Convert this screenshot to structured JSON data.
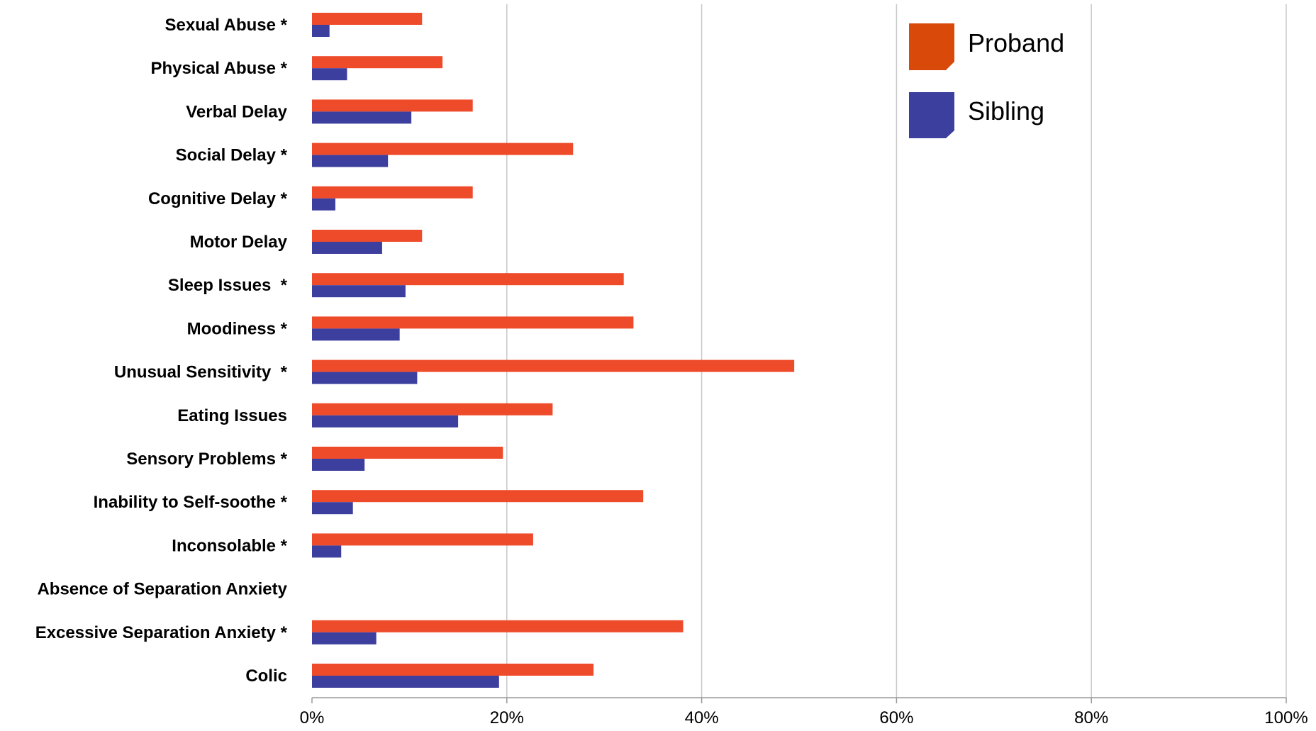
{
  "chart_data": {
    "type": "bar",
    "orientation": "horizontal",
    "categories": [
      "Sexual Abuse *",
      "Physical Abuse *",
      "Verbal Delay",
      "Social Delay *",
      "Cognitive Delay *",
      "Motor Delay",
      "Sleep Issues  *",
      "Moodiness *",
      "Unusual Sensitivity  *",
      "Eating Issues",
      "Sensory Problems *",
      "Inability to Self-soothe *",
      "Inconsolable *",
      "Absence of Separation Anxiety",
      "Excessive Separation Anxiety *",
      "Colic"
    ],
    "series": [
      {
        "name": "Proband",
        "color": "#ee4b2b",
        "values": [
          11.3,
          13.4,
          16.5,
          26.8,
          16.5,
          11.3,
          32.0,
          33.0,
          49.5,
          24.7,
          19.6,
          34.0,
          22.7,
          0,
          38.1,
          28.9
        ]
      },
      {
        "name": "Sibling",
        "color": "#3d3f9e",
        "values": [
          1.8,
          3.6,
          10.2,
          7.8,
          2.4,
          7.2,
          9.6,
          9.0,
          10.8,
          15.0,
          5.4,
          4.2,
          3.0,
          0,
          6.6,
          19.2
        ]
      }
    ],
    "xlim": [
      0,
      100
    ],
    "xticks": [
      "0%",
      "20%",
      "40%",
      "60%",
      "80%",
      "100%"
    ],
    "grid": true,
    "legend": {
      "position": "top-right"
    },
    "title": "",
    "xlabel": "",
    "ylabel": ""
  },
  "legend": {
    "items": [
      {
        "label": "Proband",
        "color": "#d94a0a"
      },
      {
        "label": "Sibling",
        "color": "#3d3f9e"
      }
    ]
  }
}
